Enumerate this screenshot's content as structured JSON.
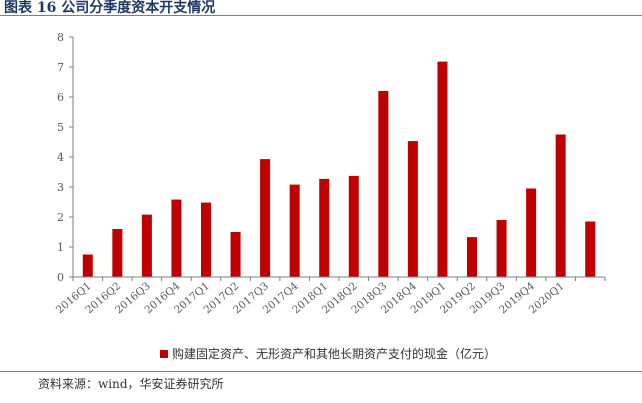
{
  "figure": {
    "title": "图表 16  公司分季度资本开支情况",
    "source": "资料来源：wind，华安证券研究所"
  },
  "chart_data": {
    "type": "bar",
    "categories": [
      "2016Q1",
      "2016Q2",
      "2016Q3",
      "2016Q4",
      "2017Q1",
      "2017Q2",
      "2017Q3",
      "2017Q4",
      "2018Q1",
      "2018Q2",
      "2018Q3",
      "2018Q4",
      "2019Q1",
      "2019Q2",
      "2019Q3",
      "2019Q4",
      "2020Q1",
      ""
    ],
    "series": [
      {
        "name": "购建固定资产、无形资产和其他长期资产支付的现金（亿元）",
        "values": [
          0.75,
          1.6,
          2.08,
          2.58,
          2.48,
          1.5,
          3.93,
          3.08,
          3.27,
          3.37,
          6.2,
          4.53,
          7.18,
          1.33,
          1.9,
          2.95,
          4.75,
          1.85
        ],
        "color": "#c00000"
      }
    ],
    "ylim": [
      0,
      8
    ],
    "yticks": [
      0,
      1,
      2,
      3,
      4,
      5,
      6,
      7,
      8
    ],
    "grid": false,
    "legend_position": "bottom",
    "xlabel": "",
    "ylabel": ""
  }
}
